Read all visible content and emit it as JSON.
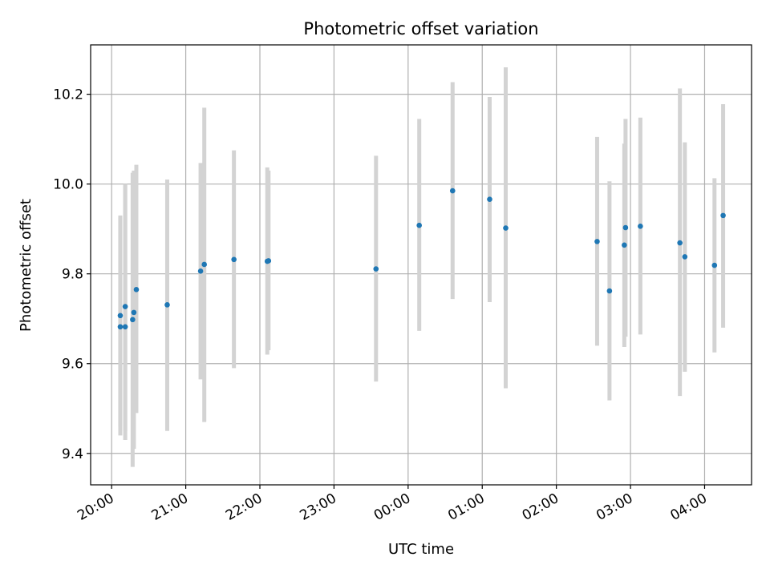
{
  "chart_data": {
    "type": "scatter",
    "title": "Photometric offset variation",
    "xlabel": "UTC time",
    "ylabel": "Photometric offset",
    "x_axis": {
      "kind": "time",
      "range": [
        "19:43",
        "04:38"
      ],
      "ticks": [
        "20:00",
        "21:00",
        "22:00",
        "23:00",
        "00:00",
        "01:00",
        "02:00",
        "03:00",
        "04:00"
      ]
    },
    "y_axis": {
      "range": [
        9.33,
        10.31
      ],
      "ticks": [
        "9.4",
        "9.6",
        "9.8",
        "10.0",
        "10.2"
      ]
    },
    "grid": true,
    "colors": {
      "points": "#1f77b4",
      "errorbars": "#d3d3d3",
      "grid": "#b0b0b0"
    },
    "series": [
      {
        "points": [
          {
            "t": "20:07",
            "y": 9.682,
            "lo": 9.44,
            "hi": 9.925
          },
          {
            "t": "20:07",
            "y": 9.707,
            "lo": 9.46,
            "hi": 9.93
          },
          {
            "t": "20:11",
            "y": 9.682,
            "lo": 9.43,
            "hi": 9.997
          },
          {
            "t": "20:11",
            "y": 9.727,
            "lo": 9.45,
            "hi": 10.0
          },
          {
            "t": "20:17",
            "y": 9.698,
            "lo": 9.37,
            "hi": 10.025
          },
          {
            "t": "20:18",
            "y": 9.714,
            "lo": 9.41,
            "hi": 10.03
          },
          {
            "t": "20:20",
            "y": 9.765,
            "lo": 9.49,
            "hi": 10.043
          },
          {
            "t": "20:45",
            "y": 9.731,
            "lo": 9.45,
            "hi": 10.01
          },
          {
            "t": "21:12",
            "y": 9.806,
            "lo": 9.565,
            "hi": 10.047
          },
          {
            "t": "21:15",
            "y": 9.821,
            "lo": 9.47,
            "hi": 10.17
          },
          {
            "t": "21:39",
            "y": 9.832,
            "lo": 9.59,
            "hi": 10.075
          },
          {
            "t": "22:06",
            "y": 9.828,
            "lo": 9.62,
            "hi": 10.037
          },
          {
            "t": "22:07",
            "y": 9.829,
            "lo": 9.63,
            "hi": 10.03
          },
          {
            "t": "23:34",
            "y": 9.811,
            "lo": 9.56,
            "hi": 10.063
          },
          {
            "t": "00:09",
            "y": 9.908,
            "lo": 9.673,
            "hi": 10.145
          },
          {
            "t": "00:36",
            "y": 9.985,
            "lo": 9.744,
            "hi": 10.227
          },
          {
            "t": "01:06",
            "y": 9.966,
            "lo": 9.737,
            "hi": 10.194
          },
          {
            "t": "01:19",
            "y": 9.902,
            "lo": 9.545,
            "hi": 10.26
          },
          {
            "t": "02:33",
            "y": 9.872,
            "lo": 9.64,
            "hi": 10.105
          },
          {
            "t": "02:43",
            "y": 9.762,
            "lo": 9.518,
            "hi": 10.006
          },
          {
            "t": "02:55",
            "y": 9.864,
            "lo": 9.637,
            "hi": 10.09
          },
          {
            "t": "02:56",
            "y": 9.903,
            "lo": 9.66,
            "hi": 10.145
          },
          {
            "t": "03:08",
            "y": 9.906,
            "lo": 9.665,
            "hi": 10.148
          },
          {
            "t": "03:40",
            "y": 9.869,
            "lo": 9.528,
            "hi": 10.213
          },
          {
            "t": "03:44",
            "y": 9.838,
            "lo": 9.582,
            "hi": 10.093
          },
          {
            "t": "04:08",
            "y": 9.819,
            "lo": 9.625,
            "hi": 10.013
          },
          {
            "t": "04:15",
            "y": 9.93,
            "lo": 9.68,
            "hi": 10.178
          }
        ]
      }
    ]
  }
}
